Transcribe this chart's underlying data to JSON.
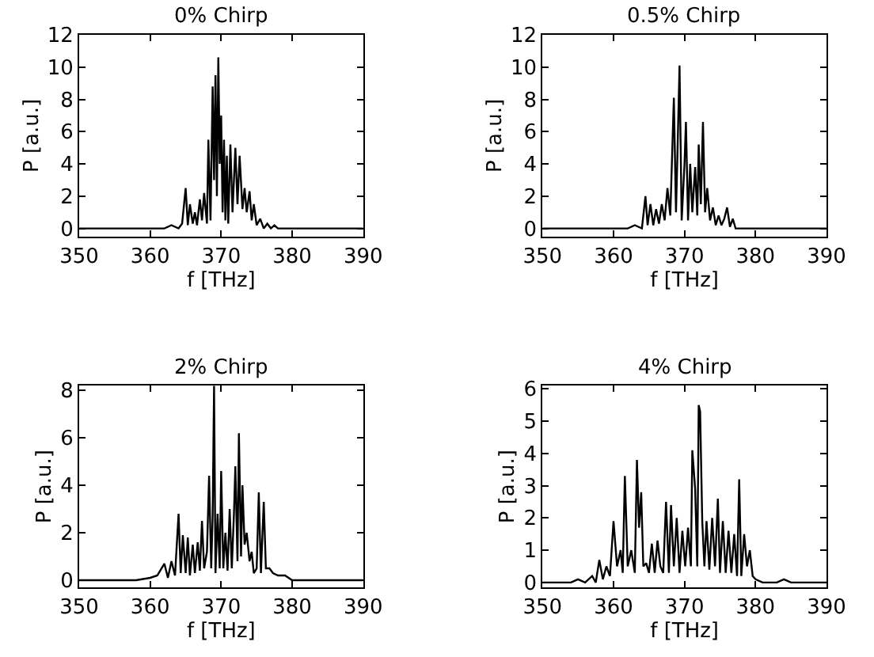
{
  "chart_data": [
    {
      "type": "line",
      "title": "0% Chirp",
      "xlabel": "f [THz]",
      "ylabel": "P [a.u.]",
      "xlim": [
        350,
        390
      ],
      "xticks": [
        350,
        360,
        370,
        380,
        390
      ],
      "ylim": [
        -0.5,
        12
      ],
      "yticks": [
        0,
        2,
        4,
        6,
        8,
        10,
        12
      ],
      "marker": "none",
      "line_style": "solid",
      "x": [
        350,
        362,
        363,
        364,
        364.5,
        365,
        365.3,
        365.6,
        366,
        366.3,
        366.6,
        367,
        367.3,
        367.6,
        368,
        368.2,
        368.5,
        368.8,
        369,
        369.2,
        369.4,
        369.6,
        369.8,
        370,
        370.2,
        370.4,
        370.6,
        370.8,
        371,
        371.3,
        371.6,
        372,
        372.3,
        372.6,
        373,
        373.3,
        373.6,
        374,
        374.3,
        374.6,
        375,
        375.5,
        376,
        376.5,
        377,
        377.5,
        378,
        380,
        390
      ],
      "series": [
        {
          "color": "#000000",
          "values": [
            0,
            0,
            0.2,
            0,
            0.3,
            2.5,
            0.2,
            1.5,
            0.3,
            1,
            0.2,
            1.8,
            0.5,
            2.2,
            0.3,
            5.5,
            0.5,
            8.8,
            3,
            9.5,
            2,
            10.6,
            4,
            7,
            1,
            5.5,
            0.5,
            4.5,
            0.3,
            5.2,
            1,
            5,
            1.5,
            4.5,
            1.2,
            2.5,
            1,
            2.3,
            0.5,
            1.5,
            0.2,
            0.6,
            0,
            0.3,
            0,
            0.2,
            0,
            0,
            0
          ]
        }
      ]
    },
    {
      "type": "line",
      "title": "0.5% Chirp",
      "xlabel": "f [THz]",
      "ylabel": "P [a.u.]",
      "xlim": [
        350,
        390
      ],
      "xticks": [
        350,
        360,
        370,
        380,
        390
      ],
      "ylim": [
        -0.5,
        12
      ],
      "yticks": [
        0,
        2,
        4,
        6,
        8,
        10,
        12
      ],
      "marker": "none",
      "line_style": "solid",
      "x": [
        350,
        362,
        363,
        364,
        364.5,
        364.8,
        365.2,
        365.6,
        366,
        366.4,
        366.8,
        367.2,
        367.6,
        368,
        368.5,
        368.8,
        369,
        369.3,
        369.6,
        370,
        370.2,
        370.5,
        370.8,
        371.1,
        371.5,
        371.8,
        372,
        372.3,
        372.6,
        372.9,
        373.2,
        373.6,
        374,
        374.4,
        374.8,
        375.2,
        375.6,
        376,
        376.4,
        376.8,
        377.2,
        378,
        390
      ],
      "series": [
        {
          "color": "#000000",
          "values": [
            0,
            0,
            0.2,
            0,
            2,
            0.2,
            1.5,
            0.2,
            1.2,
            0.3,
            1.5,
            0.5,
            2.5,
            0.8,
            8.1,
            1,
            4.5,
            10.1,
            0.5,
            4,
            6.6,
            0.5,
            4,
            1,
            3.8,
            0.8,
            5.2,
            1.5,
            6.6,
            1,
            2.5,
            0.5,
            1.3,
            0.2,
            0.8,
            0.2,
            0.6,
            1.3,
            0.1,
            0.6,
            0,
            0,
            0
          ]
        }
      ]
    },
    {
      "type": "line",
      "title": "2% Chirp",
      "xlabel": "f [THz]",
      "ylabel": "P [a.u.]",
      "xlim": [
        350,
        390
      ],
      "xticks": [
        350,
        360,
        370,
        380,
        390
      ],
      "ylim": [
        -0.3,
        8.2
      ],
      "yticks": [
        0,
        2,
        4,
        6,
        8
      ],
      "marker": "none",
      "line_style": "solid",
      "x": [
        350,
        358,
        360,
        361,
        362,
        362.5,
        363,
        363.5,
        364,
        364.3,
        364.6,
        365,
        365.3,
        365.6,
        366,
        366.3,
        366.7,
        367,
        367.3,
        367.6,
        368,
        368.3,
        368.6,
        368.8,
        369,
        369.2,
        369.5,
        369.8,
        370,
        370.3,
        370.6,
        370.9,
        371.2,
        371.5,
        371.8,
        372,
        372.3,
        372.5,
        372.8,
        373,
        373.3,
        373.6,
        374,
        374.3,
        374.6,
        375,
        375.3,
        375.6,
        376,
        376.3,
        376.8,
        377.3,
        378,
        379,
        380,
        390
      ],
      "series": [
        {
          "color": "#000000",
          "values": [
            0,
            0,
            0.1,
            0.2,
            0.7,
            0.1,
            0.8,
            0.2,
            2.8,
            0.3,
            1.9,
            0.3,
            1.8,
            0.2,
            1.5,
            0.3,
            1.6,
            0.4,
            2.5,
            0.5,
            1.2,
            4.4,
            0.5,
            2.7,
            8.2,
            0.3,
            2.8,
            0.5,
            4.6,
            0.5,
            2,
            0.4,
            3,
            0.5,
            2.8,
            4.8,
            0.8,
            6.2,
            1,
            4,
            1.5,
            2,
            0.8,
            1.2,
            0.3,
            0.5,
            3.7,
            0.3,
            3.3,
            0.5,
            0.5,
            0.3,
            0.2,
            0.2,
            0,
            0
          ]
        }
      ]
    },
    {
      "type": "line",
      "title": "4% Chirp",
      "xlabel": "f [THz]",
      "ylabel": "P [a.u.]",
      "xlim": [
        350,
        390
      ],
      "xticks": [
        350,
        360,
        370,
        380,
        390
      ],
      "ylim": [
        -0.15,
        6.1
      ],
      "yticks": [
        0,
        1,
        2,
        3,
        4,
        5,
        6
      ],
      "marker": "none",
      "line_style": "solid",
      "x": [
        350,
        354,
        355,
        356,
        357,
        357.5,
        358,
        358.5,
        359,
        359.5,
        360,
        360.5,
        361,
        361.3,
        361.6,
        362,
        362.5,
        363,
        363.3,
        363.6,
        363.9,
        364.2,
        364.6,
        365,
        365.4,
        365.8,
        366.2,
        366.6,
        367,
        367.4,
        367.8,
        368.1,
        368.5,
        368.9,
        369.3,
        369.7,
        370.1,
        370.5,
        370.9,
        371.1,
        371.5,
        371.8,
        372,
        372.2,
        372.5,
        372.8,
        373.1,
        373.5,
        373.9,
        374.3,
        374.7,
        375,
        375.4,
        375.8,
        376.2,
        376.6,
        377,
        377.4,
        377.7,
        378,
        378.4,
        378.8,
        379.2,
        379.6,
        380,
        381,
        382,
        383,
        384,
        385,
        390
      ],
      "series": [
        {
          "color": "#000000",
          "values": [
            0,
            0,
            0.1,
            0,
            0.2,
            0,
            0.7,
            0.1,
            0.5,
            0.2,
            1.9,
            0.5,
            1,
            0.3,
            3.3,
            0.5,
            1,
            0.3,
            3.8,
            1.7,
            2.8,
            0.5,
            0.6,
            0.3,
            1.2,
            0.3,
            1.3,
            0.5,
            0.3,
            2.5,
            0.3,
            2.4,
            0.5,
            2,
            0.3,
            1.6,
            0.5,
            1.7,
            0.5,
            4.1,
            2.9,
            0.5,
            5.5,
            5.3,
            1.9,
            0.5,
            1.9,
            0.4,
            2,
            0.5,
            2.6,
            0.3,
            1.9,
            0.3,
            1.6,
            0.3,
            1.5,
            0.2,
            3.2,
            0.2,
            1.5,
            0.5,
            1,
            0.2,
            0.1,
            0,
            0,
            0,
            0.1,
            0,
            0
          ]
        }
      ]
    }
  ]
}
